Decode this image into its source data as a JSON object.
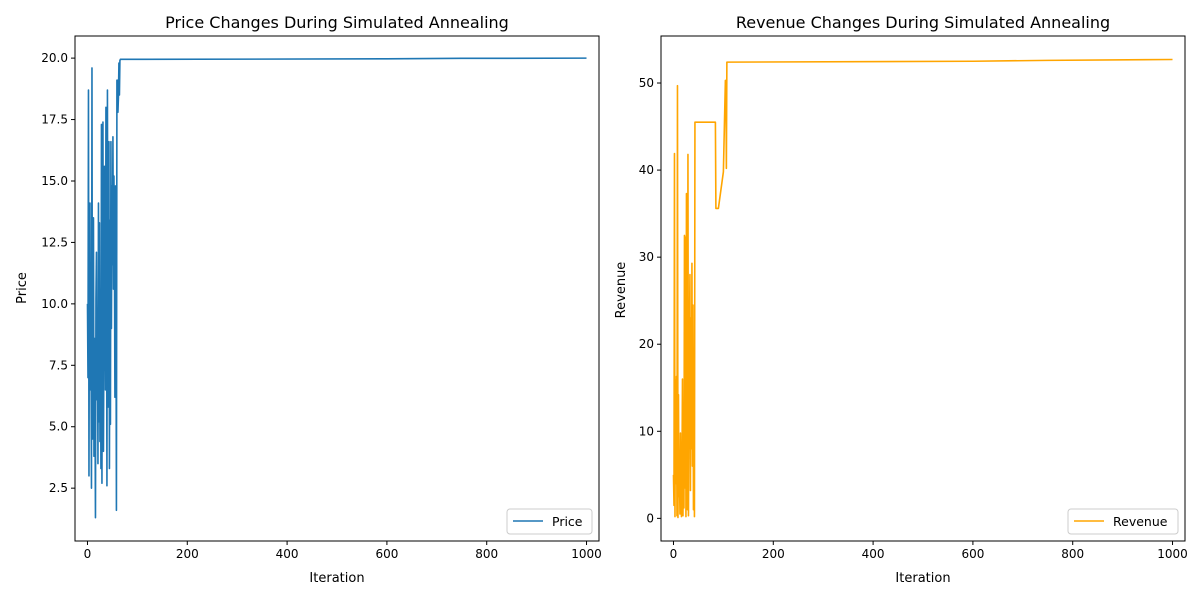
{
  "chart_data": [
    {
      "type": "line",
      "title": "Price Changes During Simulated Annealing",
      "xlabel": "Iteration",
      "ylabel": "Price",
      "xlim": [
        -25,
        1025
      ],
      "ylim": [
        0.35,
        20.9
      ],
      "xticks": [
        0,
        200,
        400,
        600,
        800,
        1000
      ],
      "yticks": [
        2.5,
        5.0,
        7.5,
        10.0,
        12.5,
        15.0,
        17.5,
        20.0
      ],
      "ytick_labels": [
        "2.5",
        "5.0",
        "7.5",
        "10.0",
        "12.5",
        "15.0",
        "17.5",
        "20.0"
      ],
      "grid": false,
      "legend": "lower-right",
      "color": "#1f77b4",
      "series": [
        {
          "name": "Price",
          "x": [
            0,
            1,
            2,
            3,
            4,
            5,
            6,
            7,
            8,
            9,
            10,
            11,
            12,
            13,
            14,
            15,
            16,
            17,
            18,
            19,
            20,
            21,
            22,
            23,
            24,
            25,
            26,
            27,
            28,
            29,
            30,
            31,
            32,
            33,
            34,
            35,
            36,
            37,
            38,
            39,
            40,
            41,
            42,
            43,
            44,
            45,
            46,
            47,
            48,
            49,
            50,
            51,
            52,
            53,
            54,
            55,
            56,
            57,
            58,
            59,
            60,
            61,
            62,
            63,
            64,
            65,
            66,
            67,
            68,
            69,
            70,
            71,
            72,
            73,
            74,
            75,
            76,
            77,
            78,
            79,
            80,
            90,
            100,
            104,
            105,
            106,
            107,
            108,
            109,
            110,
            600,
            750,
            1000
          ],
          "y": [
            10.0,
            7.0,
            18.7,
            3.0,
            12.0,
            14.1,
            6.5,
            9.2,
            2.5,
            19.6,
            4.5,
            11.0,
            13.5,
            3.8,
            8.6,
            6.2,
            1.3,
            10.2,
            12.1,
            6.1,
            9.5,
            3.5,
            14.1,
            5.2,
            13.3,
            4.4,
            8.0,
            3.3,
            17.3,
            2.7,
            11.8,
            17.4,
            4.0,
            9.1,
            15.6,
            13.0,
            6.5,
            18.0,
            12.5,
            2.6,
            18.7,
            5.8,
            11.2,
            16.6,
            3.3,
            13.4,
            5.1,
            16.6,
            9.0,
            14.8,
            11.6,
            16.8,
            10.6,
            15.2,
            12.3,
            6.2,
            14.8,
            11.0,
            1.6,
            19.1,
            19.1,
            17.8,
            18.4,
            19.8,
            18.5,
            19.9,
            19.95,
            19.95,
            19.95,
            19.95,
            19.95,
            19.95,
            19.95,
            19.95,
            19.95,
            19.95,
            19.95,
            19.95,
            19.95,
            19.95,
            19.95,
            19.95,
            19.95,
            19.95,
            19.95,
            19.95,
            19.95,
            19.95,
            19.95,
            19.95,
            19.97,
            19.99,
            20.0
          ]
        }
      ]
    },
    {
      "type": "line",
      "title": "Revenue Changes During Simulated Annealing",
      "xlabel": "Iteration",
      "ylabel": "Revenue",
      "xlim": [
        -25,
        1025
      ],
      "ylim": [
        -2.6,
        55.4
      ],
      "xticks": [
        0,
        200,
        400,
        600,
        800,
        1000
      ],
      "yticks": [
        0,
        10,
        20,
        30,
        40,
        50
      ],
      "ytick_labels": [
        "0",
        "10",
        "20",
        "30",
        "40",
        "50"
      ],
      "grid": false,
      "legend": "lower-right",
      "color": "#ffa500",
      "series": [
        {
          "name": "Revenue",
          "x": [
            0,
            1,
            2,
            3,
            4,
            5,
            6,
            7,
            8,
            9,
            10,
            11,
            12,
            13,
            14,
            15,
            16,
            17,
            18,
            19,
            20,
            21,
            22,
            23,
            24,
            25,
            26,
            27,
            28,
            29,
            30,
            31,
            32,
            33,
            34,
            35,
            36,
            37,
            38,
            39,
            40,
            41,
            42,
            43,
            44,
            45,
            46,
            47,
            48,
            49,
            50,
            51,
            52,
            53,
            54,
            55,
            56,
            57,
            58,
            59,
            60,
            61,
            62,
            63,
            64,
            65,
            66,
            67,
            68,
            69,
            70,
            71,
            72,
            73,
            74,
            75,
            76,
            77,
            78,
            79,
            80,
            81,
            82,
            83,
            84,
            85,
            86,
            87,
            88,
            89,
            90,
            100,
            104,
            105,
            106,
            107,
            108,
            109,
            110,
            600,
            750,
            1000
          ],
          "y": [
            5.0,
            1.5,
            41.9,
            0.2,
            15.9,
            4.0,
            16.3,
            0.3,
            49.7,
            0.1,
            14.2,
            2.5,
            5.0,
            0.5,
            9.8,
            2.2,
            0.2,
            5.0,
            16.0,
            0.3,
            13.2,
            1.2,
            32.5,
            3.5,
            32.3,
            0.2,
            37.3,
            3.0,
            1.0,
            41.8,
            0.3,
            14.0,
            20.0,
            28.0,
            3.2,
            23.0,
            8.0,
            29.3,
            6.0,
            24.5,
            1.0,
            18.0,
            0.2,
            45.5,
            45.5,
            45.5,
            45.5,
            45.5,
            45.5,
            45.5,
            45.5,
            45.5,
            45.5,
            45.5,
            45.5,
            45.5,
            45.5,
            45.5,
            45.5,
            45.5,
            45.5,
            45.5,
            45.5,
            45.5,
            45.5,
            45.5,
            45.5,
            45.5,
            45.5,
            45.5,
            45.5,
            45.5,
            45.5,
            45.5,
            45.5,
            45.5,
            45.5,
            45.5,
            45.5,
            45.5,
            45.5,
            45.5,
            45.5,
            45.5,
            45.5,
            35.6,
            35.6,
            35.6,
            35.6,
            35.6,
            35.6,
            39.8,
            50.3,
            50.3,
            40.2,
            52.4,
            52.4,
            52.4,
            52.4,
            52.5,
            52.6,
            52.7
          ]
        }
      ]
    }
  ]
}
